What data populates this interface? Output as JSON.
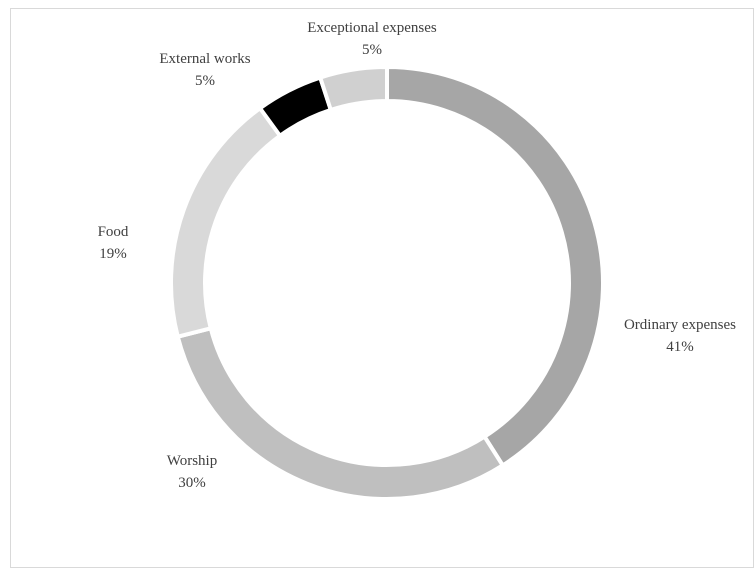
{
  "chart_data": {
    "type": "pie",
    "style": "donut",
    "title": "",
    "categories": [
      "Ordinary expenses",
      "Worship",
      "Food",
      "External works",
      "Exceptional expenses"
    ],
    "values": [
      41,
      30,
      19,
      5,
      5
    ],
    "value_labels": [
      "41%",
      "30%",
      "19%",
      "5%",
      "5%"
    ],
    "colors": [
      "#a6a6a6",
      "#bfbfbf",
      "#d9d9d9",
      "#000000",
      "#d0d0d0"
    ],
    "legend": "none",
    "start_angle_deg": 0,
    "direction": "clockwise"
  }
}
